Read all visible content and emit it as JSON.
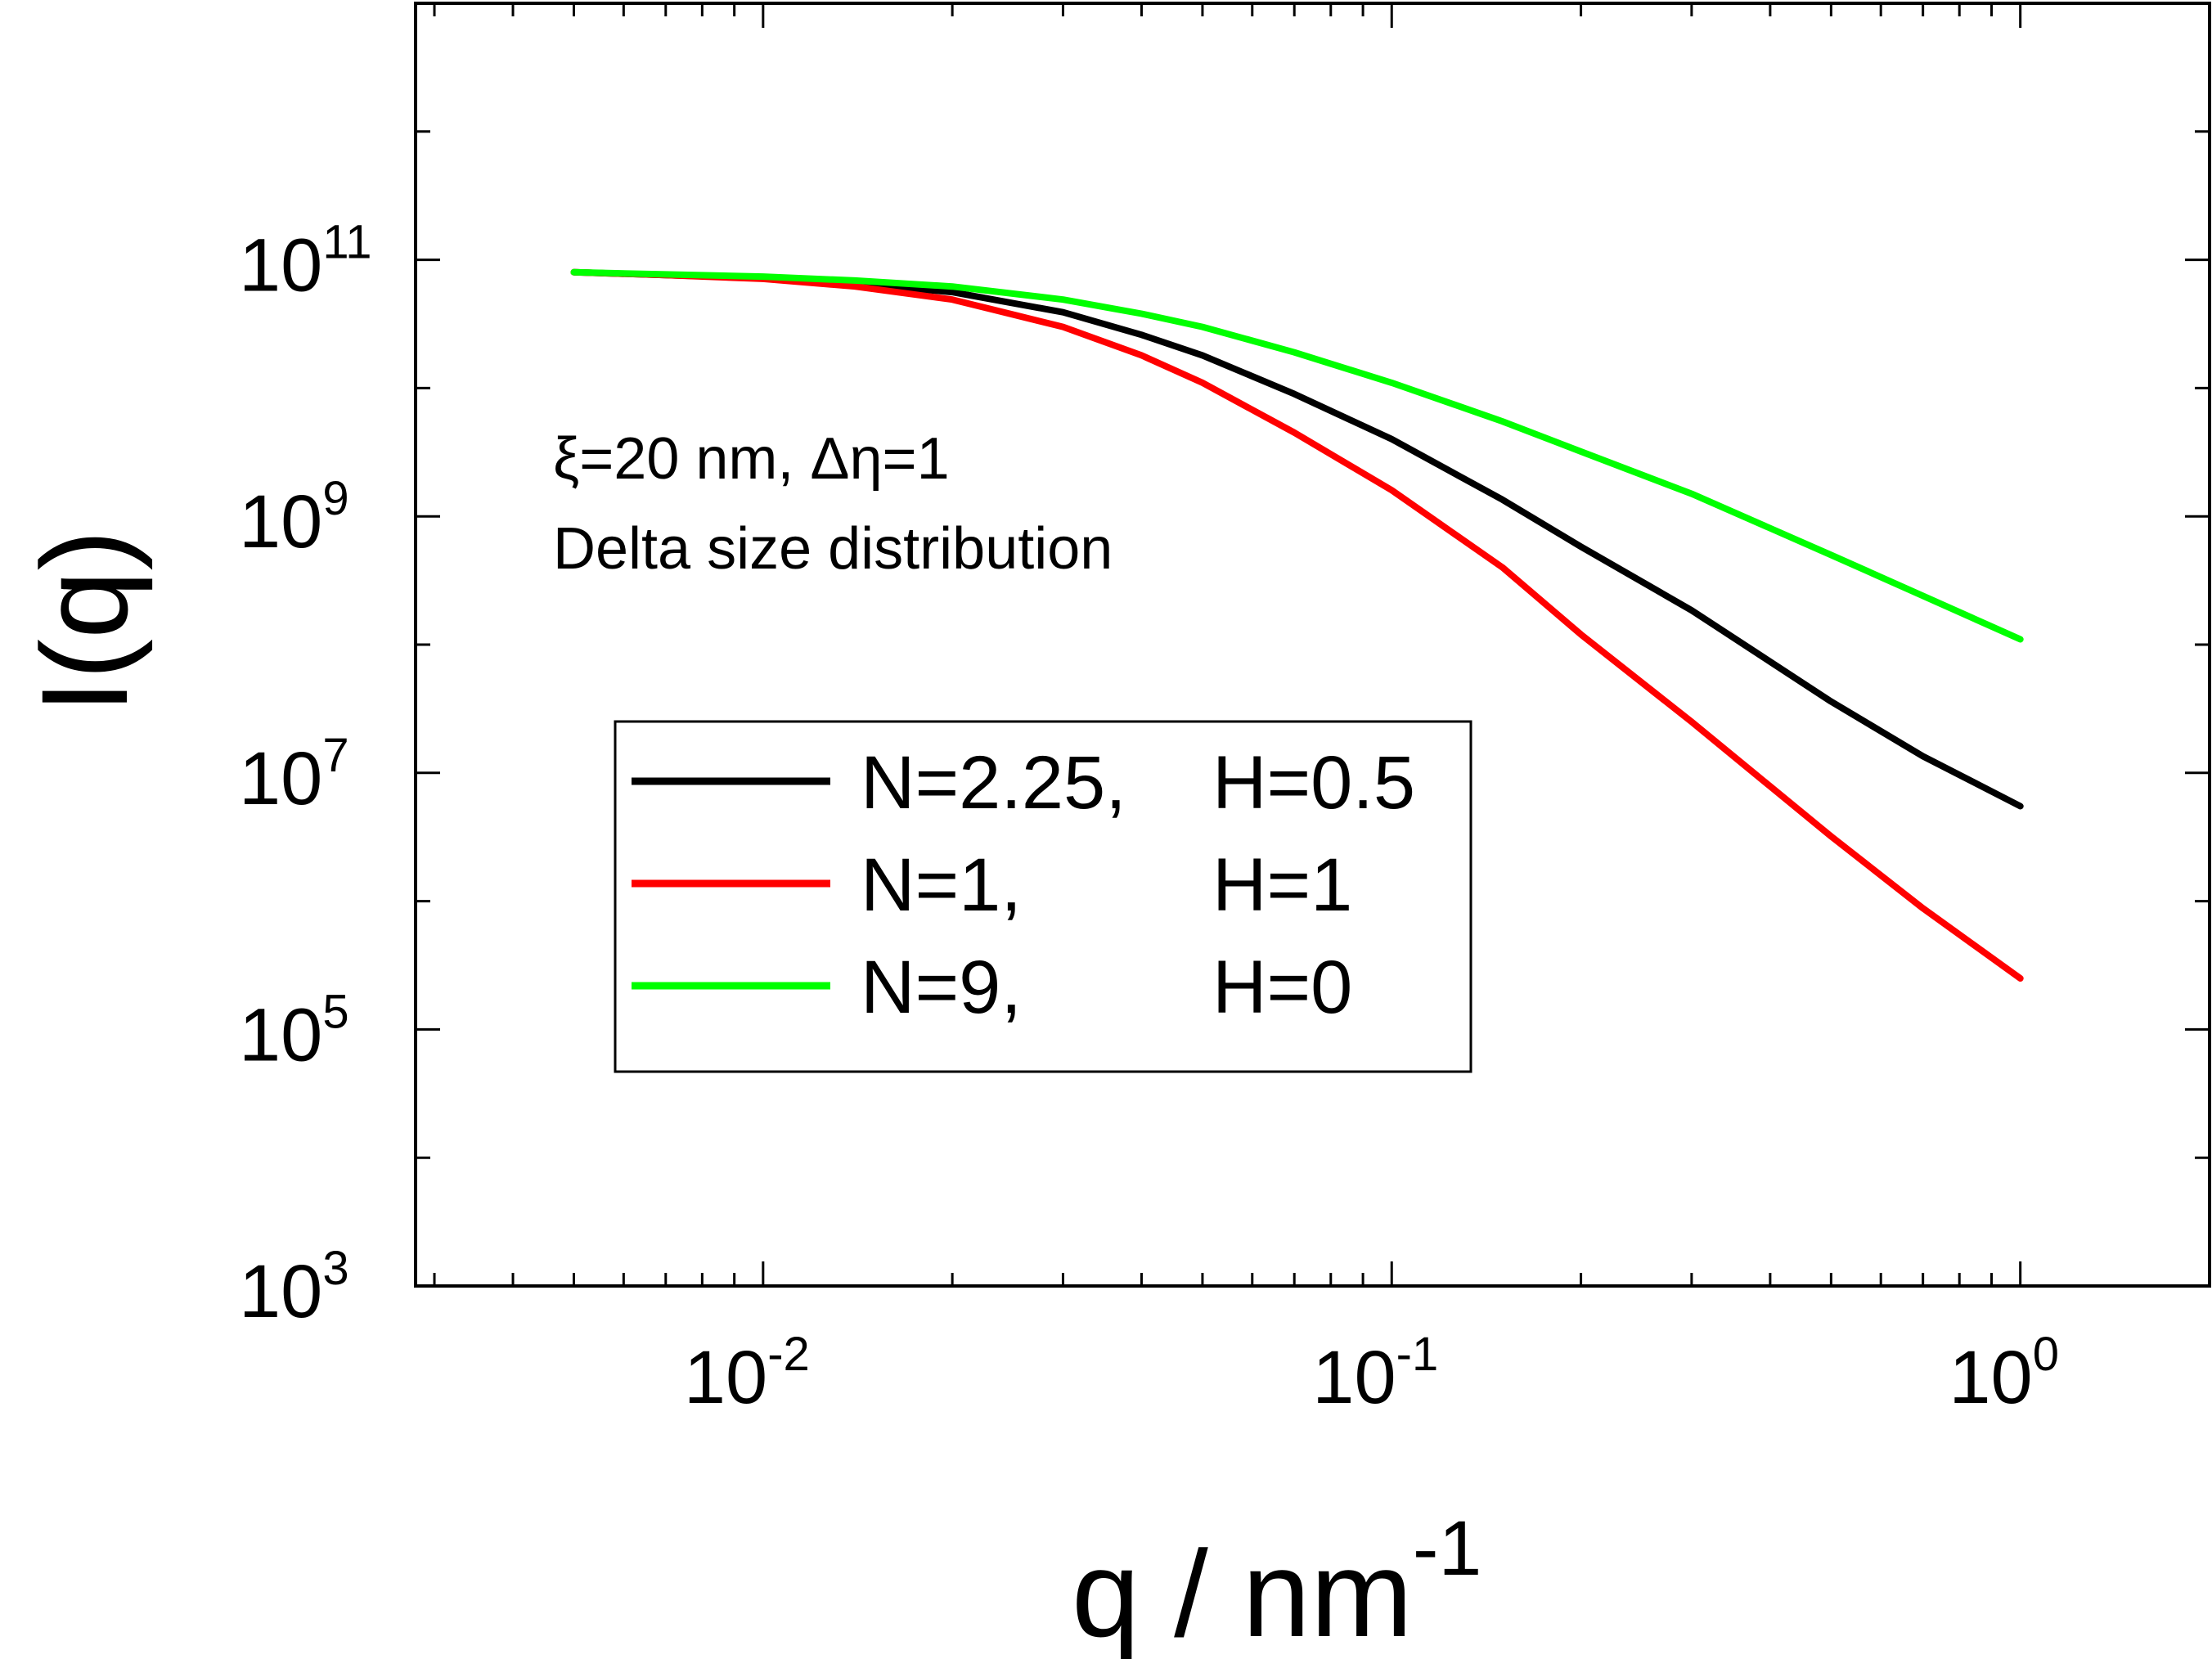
{
  "chart_data": {
    "type": "line",
    "title": "",
    "xlabel": "q / nm",
    "xlabel_exp": "-1",
    "ylabel": "I(q)",
    "x_scale": "log",
    "y_scale": "log",
    "xlim": [
      0.0028,
      2.0
    ],
    "ylim": [
      1000,
      10000000000000.0
    ],
    "x_ticks": [
      {
        "value": 0.01,
        "base": "10",
        "exp": "-2"
      },
      {
        "value": 0.1,
        "base": "10",
        "exp": "-1"
      },
      {
        "value": 1,
        "base": "10",
        "exp": "0"
      }
    ],
    "y_ticks": [
      {
        "value": 1000,
        "base": "10",
        "exp": "3"
      },
      {
        "value": 100000,
        "base": "10",
        "exp": "5"
      },
      {
        "value": 10000000,
        "base": "10",
        "exp": "7"
      },
      {
        "value": 1000000000,
        "base": "10",
        "exp": "9"
      },
      {
        "value": 100000000000,
        "base": "10",
        "exp": "11"
      }
    ],
    "grid": false,
    "legend_position": "center-left",
    "annotations": [
      "ξ=20 nm, Δη=1",
      "Delta size distribution"
    ],
    "x": [
      0.005,
      0.007,
      0.01,
      0.014,
      0.02,
      0.03,
      0.04,
      0.05,
      0.07,
      0.1,
      0.15,
      0.2,
      0.3,
      0.5,
      0.7,
      1.0
    ],
    "series": [
      {
        "name": "N=2.25, H=0.5",
        "name_parts": [
          "N=2.25,",
          "H=0.5"
        ],
        "color": "#000000",
        "values": [
          80000000000.0,
          76000000000.0,
          72000000000.0,
          65000000000.0,
          56000000000.0,
          39000000000.0,
          26000000000.0,
          18000000000.0,
          9000000000.0,
          4000000000.0,
          1350000000.0,
          580000000.0,
          185000000.0,
          36000000.0,
          13500000.0,
          5500000.0
        ]
      },
      {
        "name": "N=1,      H=1",
        "name_parts": [
          "N=1,",
          "H=1"
        ],
        "color": "#ff0000",
        "values": [
          80000000000.0,
          76000000000.0,
          71000000000.0,
          62000000000.0,
          49000000000.0,
          30000000000.0,
          18000000000.0,
          11000000000.0,
          4500000000.0,
          1600000000.0,
          400000000.0,
          120000000.0,
          25000000.0,
          3200000.0,
          880000.0,
          250000.0
        ]
      },
      {
        "name": "N=9,      H=0",
        "name_parts": [
          "N=9,",
          "H=0"
        ],
        "color": "#00ff00",
        "values": [
          80000000000.0,
          77000000000.0,
          74000000000.0,
          69000000000.0,
          62000000000.0,
          49000000000.0,
          38000000000.0,
          30000000000.0,
          19000000000.0,
          11000000000.0,
          5500000000.0,
          3200000000.0,
          1500000000.0,
          500000000.0,
          240000000.0,
          110000000.0
        ]
      }
    ]
  }
}
